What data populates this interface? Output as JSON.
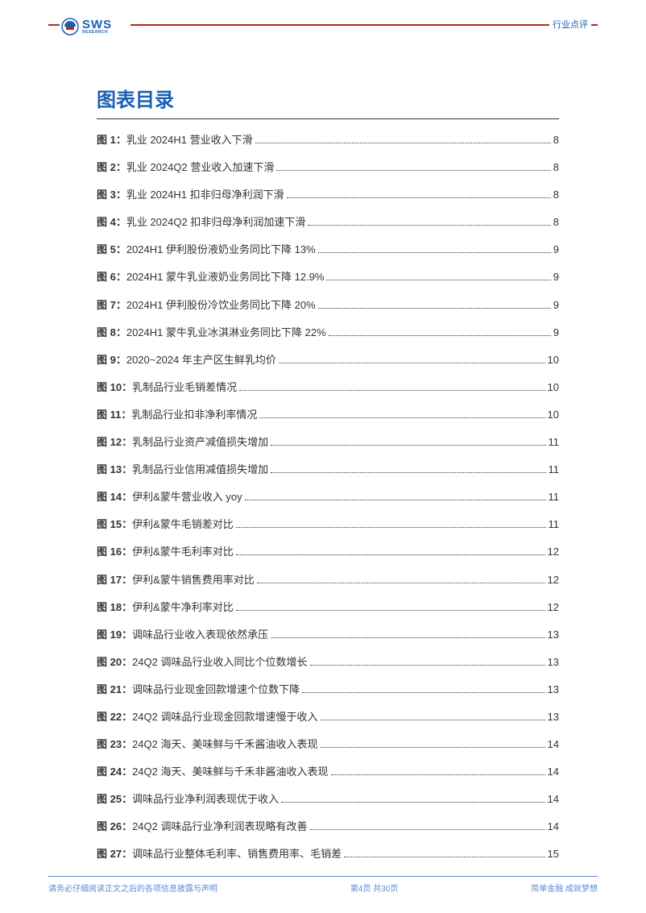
{
  "header": {
    "logo_main": "SWS",
    "logo_sub": "RESEARCH",
    "doc_type": "行业点评"
  },
  "colors": {
    "brand_blue": "#1a5fb4",
    "rule_red": "#b02b2b",
    "footer_blue": "#5b8bd4",
    "text": "#333333",
    "bg": "#ffffff"
  },
  "toc": {
    "title": "图表目录",
    "entries": [
      {
        "label": "图 1：",
        "text": "乳业 2024H1 营业收入下滑",
        "page": "8"
      },
      {
        "label": "图 2：",
        "text": "乳业 2024Q2 营业收入加速下滑",
        "page": "8"
      },
      {
        "label": "图 3：",
        "text": "乳业 2024H1 扣非归母净利润下滑",
        "page": "8"
      },
      {
        "label": "图 4：",
        "text": "乳业 2024Q2 扣非归母净利润加速下滑",
        "page": "8"
      },
      {
        "label": "图 5：",
        "text": "2024H1 伊利股份液奶业务同比下降 13%",
        "page": "9"
      },
      {
        "label": "图 6：",
        "text": "2024H1 蒙牛乳业液奶业务同比下降 12.9%",
        "page": "9"
      },
      {
        "label": "图 7：",
        "text": "2024H1 伊利股份冷饮业务同比下降 20%",
        "page": "9"
      },
      {
        "label": "图 8：",
        "text": "2024H1 蒙牛乳业冰淇淋业务同比下降 22%",
        "page": "9"
      },
      {
        "label": "图 9：",
        "text": "2020~2024 年主产区生鲜乳均价",
        "page": "10"
      },
      {
        "label": "图 10：",
        "text": "乳制品行业毛销差情况",
        "page": "10"
      },
      {
        "label": "图 11：",
        "text": "乳制品行业扣非净利率情况",
        "page": "10"
      },
      {
        "label": "图 12：",
        "text": "乳制品行业资产减值损失增加",
        "page": "11"
      },
      {
        "label": "图 13：",
        "text": "乳制品行业信用减值损失增加",
        "page": "11"
      },
      {
        "label": "图 14：",
        "text": "伊利&蒙牛营业收入 yoy",
        "page": "11"
      },
      {
        "label": "图 15：",
        "text": "伊利&蒙牛毛销差对比",
        "page": "11"
      },
      {
        "label": "图 16：",
        "text": "伊利&蒙牛毛利率对比",
        "page": "12"
      },
      {
        "label": "图 17：",
        "text": "伊利&蒙牛销售费用率对比",
        "page": "12"
      },
      {
        "label": "图 18：",
        "text": "伊利&蒙牛净利率对比",
        "page": "12"
      },
      {
        "label": "图 19：",
        "text": "调味品行业收入表现依然承压",
        "page": "13"
      },
      {
        "label": "图 20：",
        "text": "24Q2 调味品行业收入同比个位数增长",
        "page": "13"
      },
      {
        "label": "图 21：",
        "text": "调味品行业现金回款增速个位数下降",
        "page": "13"
      },
      {
        "label": "图 22：",
        "text": "24Q2 调味品行业现金回款增速慢于收入",
        "page": "13"
      },
      {
        "label": "图 23：",
        "text": "24Q2 海天、美味鲜与千禾酱油收入表现",
        "page": "14"
      },
      {
        "label": "图 24：",
        "text": "24Q2 海天、美味鲜与千禾非酱油收入表现",
        "page": "14"
      },
      {
        "label": "图 25：",
        "text": "调味品行业净利润表现优于收入",
        "page": "14"
      },
      {
        "label": "图 26：",
        "text": "24Q2 调味品行业净利润表现略有改善",
        "page": "14"
      },
      {
        "label": "图 27：",
        "text": "调味品行业整体毛利率、销售费用率、毛销差",
        "page": "15"
      }
    ]
  },
  "footer": {
    "left": "请务必仔细阅读正文之后的各项信息披露与声明",
    "center": "第4页 共30页",
    "right": "简单金融 成就梦想"
  }
}
